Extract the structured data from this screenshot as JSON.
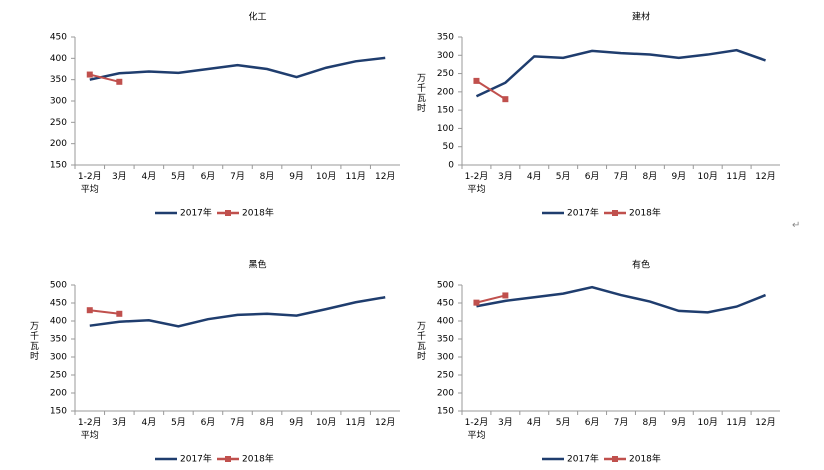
{
  "chart_data": [
    {
      "type": "line",
      "title": "化工",
      "ylabel": null,
      "categories": [
        "1-2月\n平均",
        "3月",
        "4月",
        "5月",
        "6月",
        "7月",
        "8月",
        "9月",
        "10月",
        "11月",
        "12月"
      ],
      "ylim": [
        150,
        450
      ],
      "yticks": [
        150,
        200,
        250,
        300,
        350,
        400,
        450
      ],
      "series": [
        {
          "name": "2017年",
          "color": "#1f3d6e",
          "values": [
            350,
            365,
            369,
            366,
            375,
            384,
            375,
            356,
            378,
            393,
            401
          ]
        },
        {
          "name": "2018年",
          "color": "#c0504d",
          "values": [
            362,
            345,
            null,
            null,
            null,
            null,
            null,
            null,
            null,
            null,
            null
          ]
        }
      ]
    },
    {
      "type": "line",
      "title": "建材",
      "ylabel": "万千瓦时",
      "categories": [
        "1-2月\n平均",
        "3月",
        "4月",
        "5月",
        "6月",
        "7月",
        "8月",
        "9月",
        "10月",
        "11月",
        "12月"
      ],
      "ylim": [
        0,
        350
      ],
      "yticks": [
        0,
        50,
        100,
        150,
        200,
        250,
        300,
        350
      ],
      "series": [
        {
          "name": "2017年",
          "color": "#1f3d6e",
          "values": [
            188,
            225,
            297,
            293,
            312,
            306,
            302,
            293,
            302,
            314,
            286
          ]
        },
        {
          "name": "2018年",
          "color": "#c0504d",
          "values": [
            230,
            180,
            null,
            null,
            null,
            null,
            null,
            null,
            null,
            null,
            null
          ]
        }
      ]
    },
    {
      "type": "line",
      "title": "黑色",
      "ylabel": "万千瓦时",
      "categories": [
        "1-2月\n平均",
        "3月",
        "4月",
        "5月",
        "6月",
        "7月",
        "8月",
        "9月",
        "10月",
        "11月",
        "12月"
      ],
      "ylim": [
        150,
        500
      ],
      "yticks": [
        150,
        200,
        250,
        300,
        350,
        400,
        450,
        500
      ],
      "series": [
        {
          "name": "2017年",
          "color": "#1f3d6e",
          "values": [
            387,
            398,
            402,
            385,
            405,
            417,
            420,
            415,
            433,
            452,
            466
          ]
        },
        {
          "name": "2018年",
          "color": "#c0504d",
          "values": [
            430,
            420,
            null,
            null,
            null,
            null,
            null,
            null,
            null,
            null,
            null
          ]
        }
      ]
    },
    {
      "type": "line",
      "title": "有色",
      "ylabel": "万千瓦时",
      "categories": [
        "1-2月\n平均",
        "3月",
        "4月",
        "5月",
        "6月",
        "7月",
        "8月",
        "9月",
        "10月",
        "11月",
        "12月"
      ],
      "ylim": [
        150,
        500
      ],
      "yticks": [
        150,
        200,
        250,
        300,
        350,
        400,
        450,
        500
      ],
      "series": [
        {
          "name": "2017年",
          "color": "#1f3d6e",
          "values": [
            441,
            456,
            466,
            476,
            494,
            472,
            454,
            428,
            424,
            440,
            472
          ]
        },
        {
          "name": "2018年",
          "color": "#c0504d",
          "values": [
            451,
            471,
            null,
            null,
            null,
            null,
            null,
            null,
            null,
            null,
            null
          ]
        }
      ]
    }
  ],
  "return_mark": "↵"
}
